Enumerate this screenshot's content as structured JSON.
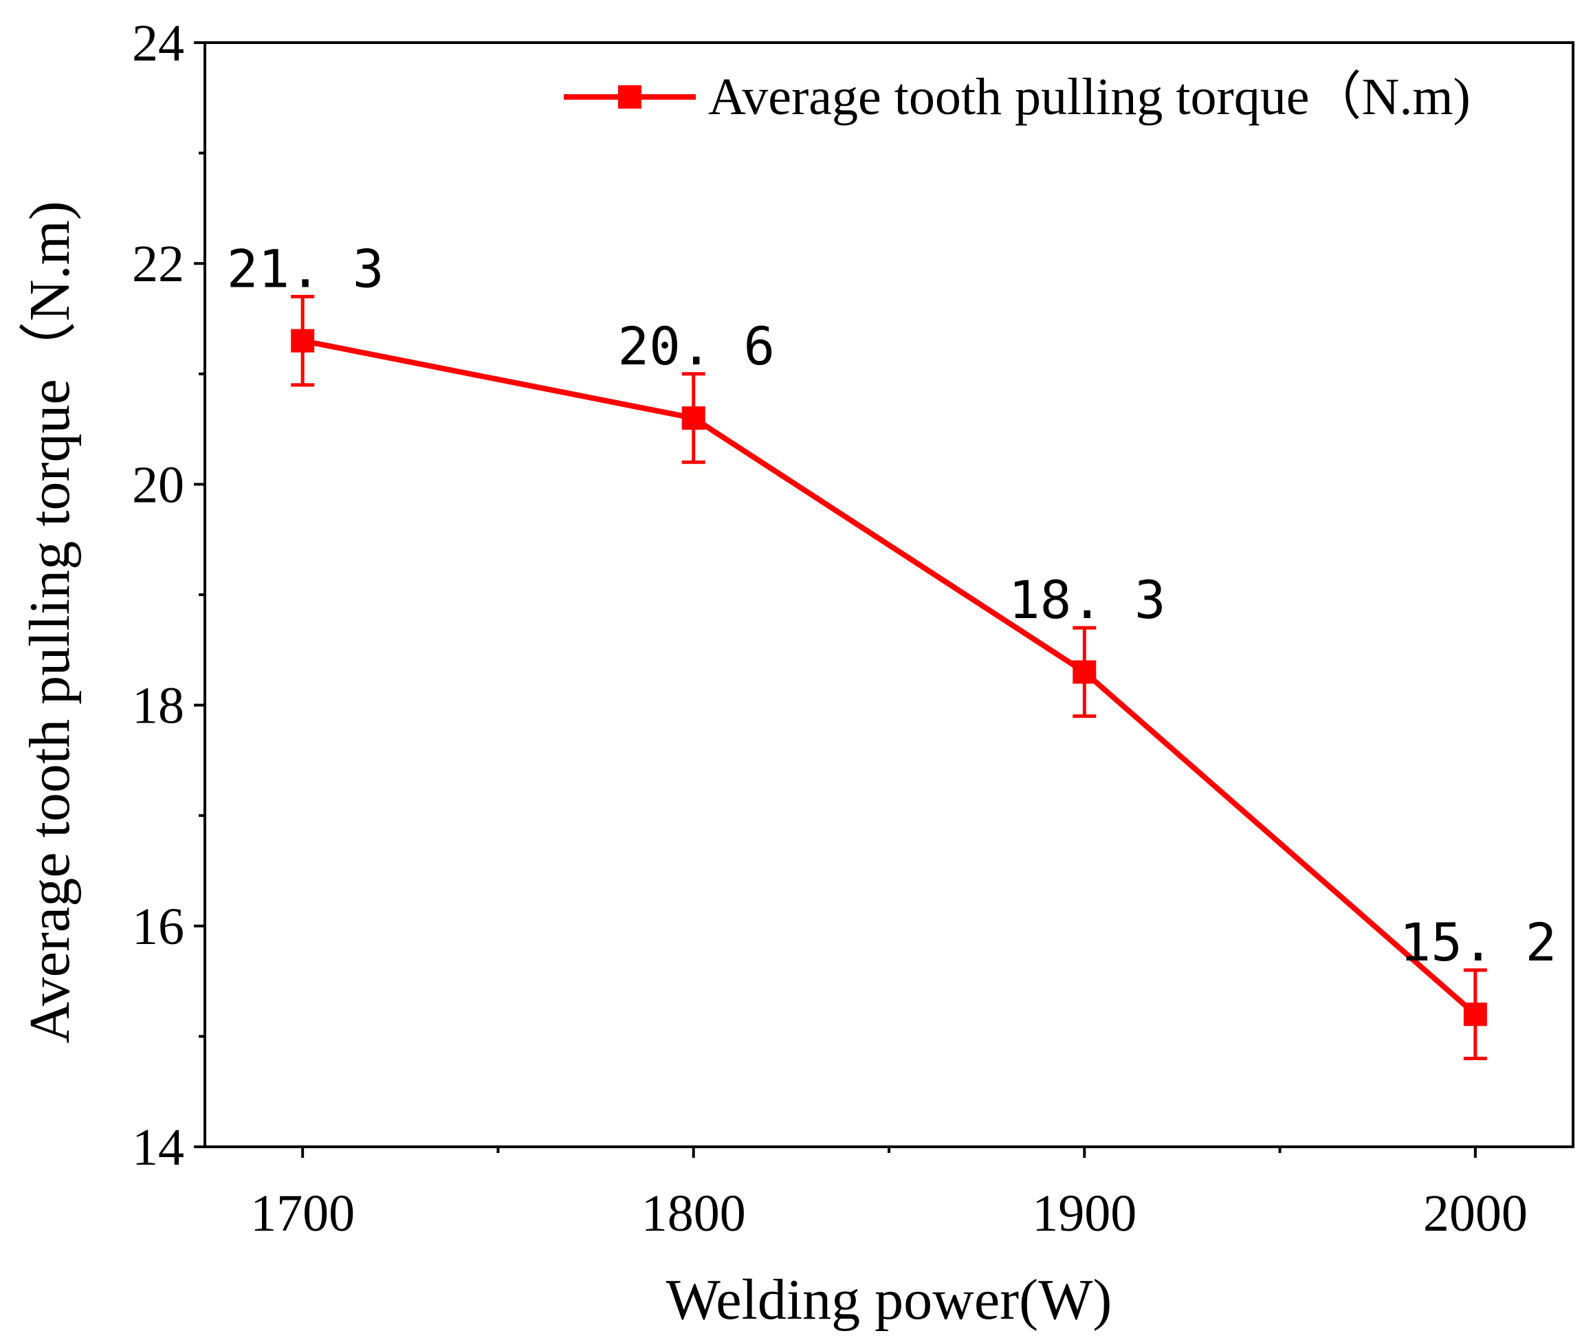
{
  "chart_data": {
    "type": "line",
    "title": "",
    "xlabel": "Welding power(W)",
    "ylabel": "Average tooth pulling torque（N.m)",
    "xlim": [
      1675,
      2025
    ],
    "ylim": [
      14,
      24
    ],
    "x_ticks": [
      1700,
      1800,
      1900,
      2000
    ],
    "x_minor_ticks": [
      1750,
      1850,
      1950
    ],
    "y_ticks": [
      14,
      16,
      18,
      20,
      22,
      24
    ],
    "y_minor_ticks": [
      15,
      17,
      19,
      21,
      23
    ],
    "grid": false,
    "legend_position": "top-right",
    "series": [
      {
        "name": "Average tooth pulling torque（N.m)",
        "color": "#ff0000",
        "marker": "square",
        "x": [
          1700,
          1800,
          1900,
          2000
        ],
        "values": [
          21.3,
          20.6,
          18.3,
          15.2
        ],
        "error": [
          0.4,
          0.4,
          0.4,
          0.4
        ],
        "data_labels": [
          "21. 3",
          "20. 6",
          "18. 3",
          "15. 2"
        ]
      }
    ]
  }
}
